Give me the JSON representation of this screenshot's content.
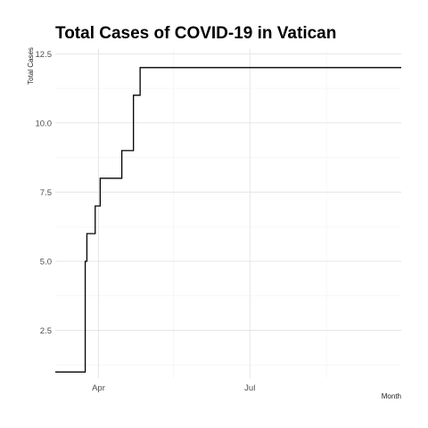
{
  "chart_data": {
    "type": "line",
    "title": "Total Cases of COVID-19 in Vatican",
    "xlabel": "Month",
    "ylabel": "Total Cases",
    "x_range": [
      "2020-03-06",
      "2020-09-30"
    ],
    "ylim": [
      0.78,
      12.67
    ],
    "y_ticks": [
      2.5,
      5.0,
      7.5,
      10.0,
      12.5
    ],
    "y_tick_labels": [
      "2.5",
      "5.0",
      "7.5",
      "10.0",
      "12.5"
    ],
    "x_ticks": [
      "2020-04-01",
      "2020-07-01"
    ],
    "x_tick_labels": [
      "Apr",
      "Jul"
    ],
    "x_minor_ticks": [
      "2020-05-16",
      "2020-08-16"
    ],
    "grid": true,
    "series": [
      {
        "points": [
          {
            "x": "2020-03-06",
            "y": 1
          },
          {
            "x": "2020-03-24",
            "y": 5
          },
          {
            "x": "2020-03-25",
            "y": 6
          },
          {
            "x": "2020-03-30",
            "y": 7
          },
          {
            "x": "2020-04-02",
            "y": 8
          },
          {
            "x": "2020-04-15",
            "y": 9
          },
          {
            "x": "2020-04-22",
            "y": 11
          },
          {
            "x": "2020-04-26",
            "y": 12
          },
          {
            "x": "2020-09-30",
            "y": 12
          }
        ]
      }
    ]
  }
}
